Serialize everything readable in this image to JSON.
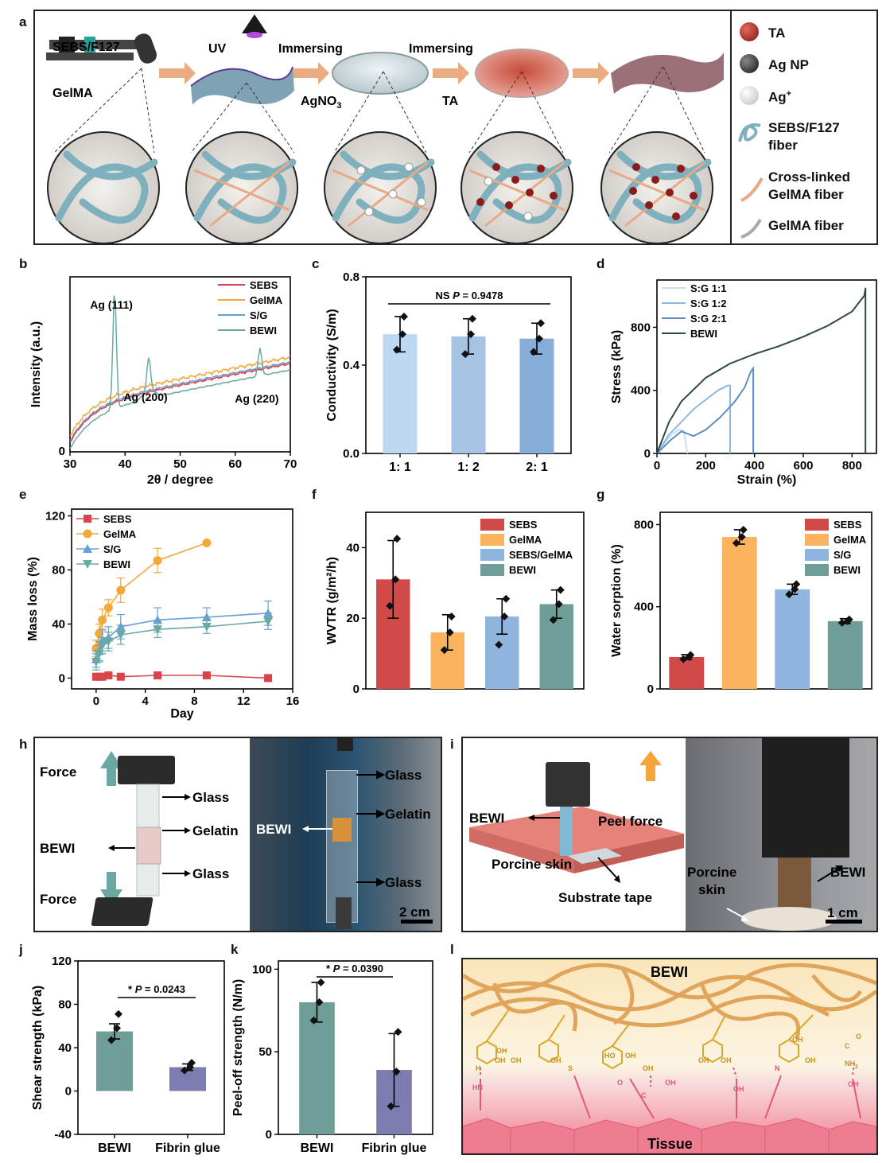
{
  "panel_letters": [
    "a",
    "b",
    "c",
    "d",
    "e",
    "f",
    "g",
    "h",
    "i",
    "j",
    "k",
    "l"
  ],
  "panel_a": {
    "labels": {
      "sebs_f127": "SEBS/F127",
      "gelma": "GelMA",
      "uv": "UV",
      "immersing1": "Immersing",
      "agno3": "AgNO",
      "agno3_sub": "3",
      "immersing2": "Immersing",
      "ta": "TA"
    },
    "legend": [
      {
        "label": "TA",
        "icon": "red-sphere-icon"
      },
      {
        "label": "Ag NP",
        "icon": "black-sphere-icon"
      },
      {
        "label": "Ag",
        "sup": "+",
        "icon": "white-sphere-icon"
      },
      {
        "label": "SEBS/F127",
        "label2": "fiber",
        "icon": "blue-coil-icon"
      },
      {
        "label": "Cross-linked",
        "label2": "GelMA fiber",
        "icon": "orange-fiber-icon"
      },
      {
        "label": "GelMA fiber",
        "icon": "gray-fiber-icon"
      }
    ]
  },
  "chart_data": [
    {
      "id": "b",
      "type": "line",
      "xlabel": "2θ / degree",
      "ylabel": "Intensity (a.u.)",
      "xlim": [
        30,
        70
      ],
      "xticks": [
        30,
        40,
        50,
        60,
        70
      ],
      "yticks_label": [
        "0"
      ],
      "legend": [
        "SEBS",
        "GelMA",
        "S/G",
        "BEWI"
      ],
      "annotations": [
        "Ag (111)",
        "Ag (200)",
        "Ag (220)"
      ],
      "peaks_2theta": [
        38.1,
        44.3,
        64.5
      ]
    },
    {
      "id": "c",
      "type": "bar",
      "xlabel": "",
      "ylabel": "Conductivity (S/m)",
      "categories": [
        "1: 1",
        "1: 2",
        "2: 1"
      ],
      "values": [
        0.54,
        0.53,
        0.52
      ],
      "errors": [
        0.08,
        0.08,
        0.07
      ],
      "points": [
        [
          0.47,
          0.54,
          0.62
        ],
        [
          0.45,
          0.54,
          0.61
        ],
        [
          0.46,
          0.52,
          0.59
        ]
      ],
      "ylim": [
        0,
        0.8
      ],
      "yticks": [
        "0.0",
        "0.4",
        "0.8"
      ],
      "annotation": "NS",
      "p_label": "P",
      "p_value": " = 0.9478"
    },
    {
      "id": "d",
      "type": "line",
      "xlabel": "Strain (%)",
      "ylabel": "Stress (kPa)",
      "xlim": [
        0,
        900
      ],
      "ylim": [
        0,
        1100
      ],
      "xticks": [
        "0",
        "200",
        "400",
        "600",
        "800"
      ],
      "yticks": [
        "0",
        "400",
        "800"
      ],
      "series": [
        {
          "name": "S:G 1:1",
          "x": [
            0,
            30,
            60,
            90,
            110,
            125
          ],
          "y": [
            0,
            60,
            120,
            150,
            145,
            0
          ]
        },
        {
          "name": "S:G 1:2",
          "x": [
            0,
            50,
            100,
            150,
            200,
            250,
            290,
            300,
            300
          ],
          "y": [
            0,
            120,
            200,
            280,
            340,
            400,
            430,
            430,
            0
          ]
        },
        {
          "name": "S:G 2:1",
          "x": [
            0,
            60,
            100,
            150,
            200,
            260,
            320,
            360,
            385,
            395,
            395
          ],
          "y": [
            0,
            90,
            140,
            110,
            150,
            230,
            330,
            420,
            520,
            540,
            0
          ]
        },
        {
          "name": "BEWI",
          "x": [
            0,
            50,
            100,
            200,
            300,
            400,
            500,
            600,
            700,
            800,
            850,
            855,
            855
          ],
          "y": [
            0,
            200,
            330,
            480,
            570,
            630,
            680,
            740,
            810,
            900,
            1000,
            1050,
            0
          ]
        }
      ]
    },
    {
      "id": "e",
      "type": "line",
      "xlabel": "Day",
      "ylabel": "Mass loss (%)",
      "xlim": [
        -2,
        16
      ],
      "ylim": [
        -8,
        125
      ],
      "xticks": [
        "0",
        "4",
        "8",
        "12",
        "16"
      ],
      "yticks": [
        "0",
        "40",
        "80",
        "120"
      ],
      "series": [
        {
          "name": "SEBS",
          "x": [
            0,
            0.25,
            0.5,
            1,
            2,
            5,
            9,
            14
          ],
          "y": [
            1,
            1,
            1,
            2,
            1,
            2,
            2,
            0
          ],
          "err": [
            1,
            1,
            1,
            1,
            1,
            1,
            1,
            1
          ]
        },
        {
          "name": "GelMA",
          "x": [
            0,
            0.25,
            0.5,
            1,
            2,
            5,
            9
          ],
          "y": [
            22,
            33,
            43,
            52,
            65,
            87,
            100
          ],
          "err": [
            6,
            7,
            8,
            6,
            9,
            9,
            0
          ]
        },
        {
          "name": "S/G",
          "x": [
            0,
            0.25,
            0.5,
            1,
            2,
            5,
            9,
            14
          ],
          "y": [
            14,
            20,
            28,
            30,
            38,
            43,
            45,
            48
          ],
          "err": [
            6,
            7,
            8,
            8,
            9,
            9,
            7,
            9
          ]
        },
        {
          "name": "BEWI",
          "x": [
            0,
            0.25,
            0.5,
            1,
            2,
            5,
            9,
            14
          ],
          "y": [
            12,
            18,
            24,
            27,
            32,
            36,
            38,
            42
          ],
          "err": [
            6,
            6,
            6,
            7,
            7,
            6,
            5,
            6
          ]
        }
      ]
    },
    {
      "id": "f",
      "type": "bar",
      "xlabel": "",
      "ylabel": "WVTR (g/m²/h)",
      "categories": [
        "SEBS",
        "GelMA",
        "SEBS/GelMA",
        "BEWI"
      ],
      "values": [
        31,
        16,
        20.5,
        24
      ],
      "errors": [
        11,
        5,
        5,
        4
      ],
      "points": [
        [
          23.5,
          31,
          42.5
        ],
        [
          11,
          16,
          20.5
        ],
        [
          12.5,
          20.5,
          25.5
        ],
        [
          19.5,
          24,
          28
        ]
      ],
      "ylim": [
        0,
        50
      ],
      "yticks": [
        "0",
        "20",
        "40"
      ]
    },
    {
      "id": "g",
      "type": "bar",
      "xlabel": "",
      "ylabel": "Water sorption (%)",
      "categories": [
        "SEBS",
        "GelMA",
        "S/G",
        "BEWI"
      ],
      "values": [
        155,
        740,
        485,
        330
      ],
      "errors": [
        12,
        35,
        25,
        12
      ],
      "points": [
        [
          145,
          155,
          165
        ],
        [
          710,
          740,
          775
        ],
        [
          460,
          485,
          510
        ],
        [
          322,
          330,
          338
        ]
      ],
      "ylim": [
        0,
        860
      ],
      "yticks": [
        "0",
        "400",
        "800"
      ]
    },
    {
      "id": "j",
      "type": "bar",
      "xlabel": "",
      "ylabel": "Shear strength (kPa)",
      "categories": [
        "BEWI",
        "Fibrin glue"
      ],
      "values": [
        55,
        22
      ],
      "errors": [
        7,
        3
      ],
      "points": [
        [
          47,
          58,
          71
        ],
        [
          19,
          22,
          26
        ]
      ],
      "ylim": [
        -40,
        120
      ],
      "yticks": [
        "-40",
        "0",
        "40",
        "80",
        "120"
      ],
      "annotation": "*",
      "p_label": "P",
      "p_value": " = 0.0243"
    },
    {
      "id": "k",
      "type": "bar",
      "xlabel": "",
      "ylabel": "Peel-off strength (N/m)",
      "categories": [
        "BEWI",
        "Fibrin glue"
      ],
      "values": [
        80,
        39
      ],
      "errors": [
        12,
        22
      ],
      "points": [
        [
          69,
          80,
          92
        ],
        [
          17,
          38,
          62
        ]
      ],
      "ylim": [
        0,
        105
      ],
      "yticks": [
        "0",
        "50",
        "100"
      ],
      "annotation": "*",
      "p_label": "P",
      "p_value": " = 0.0390"
    }
  ],
  "panel_h": {
    "force_top": "Force",
    "force_bottom": "Force",
    "glass_top": "Glass",
    "gelatin": "Gelatin",
    "glass_bottom": "Glass",
    "bewi": "BEWI",
    "photo_glass_top": "Glass",
    "photo_gelatin": "Gelatin",
    "photo_bewi": "BEWI",
    "photo_glass_bottom": "Glass",
    "scale": "2 cm"
  },
  "panel_i": {
    "bewi": "BEWI",
    "peel_force": "Peel force",
    "porcine_skin": "Porcine skin",
    "substrate_tape": "Substrate tape",
    "photo_porcine": "Porcine",
    "photo_skin": "skin",
    "photo_bewi": "BEWI",
    "scale": "1 cm"
  },
  "panel_l": {
    "bewi": "BEWI",
    "tissue": "Tissue",
    "chem_labels": [
      "OH",
      "OH",
      "OH",
      "H",
      "S",
      "HO",
      "OH",
      "OH",
      "O",
      "OH",
      "C",
      "OH",
      "OH",
      "OH",
      "N",
      "OH",
      "OH",
      "C",
      "O",
      "NH",
      "2",
      "HN",
      "OH",
      "OH"
    ]
  },
  "colors": {
    "sebs": "#d9434b",
    "gelma": "#f4a838",
    "sg": "#6a9fd6",
    "bewi": "#6aa8a4",
    "bar_red": "#d24a48",
    "bar_orange": "#fbb35d",
    "bar_blue": "#8fb5df",
    "bar_teal": "#6f9e98",
    "bar_purple": "#7d7cb0",
    "bar_light1": "#bfd8f1",
    "bar_light2": "#a6c3e3",
    "bar_light3": "#86add8",
    "d_s11": "#c8def2",
    "d_s12": "#8fb8e0",
    "d_s21": "#5d8fc4",
    "d_bewi": "#2d4a3e"
  }
}
